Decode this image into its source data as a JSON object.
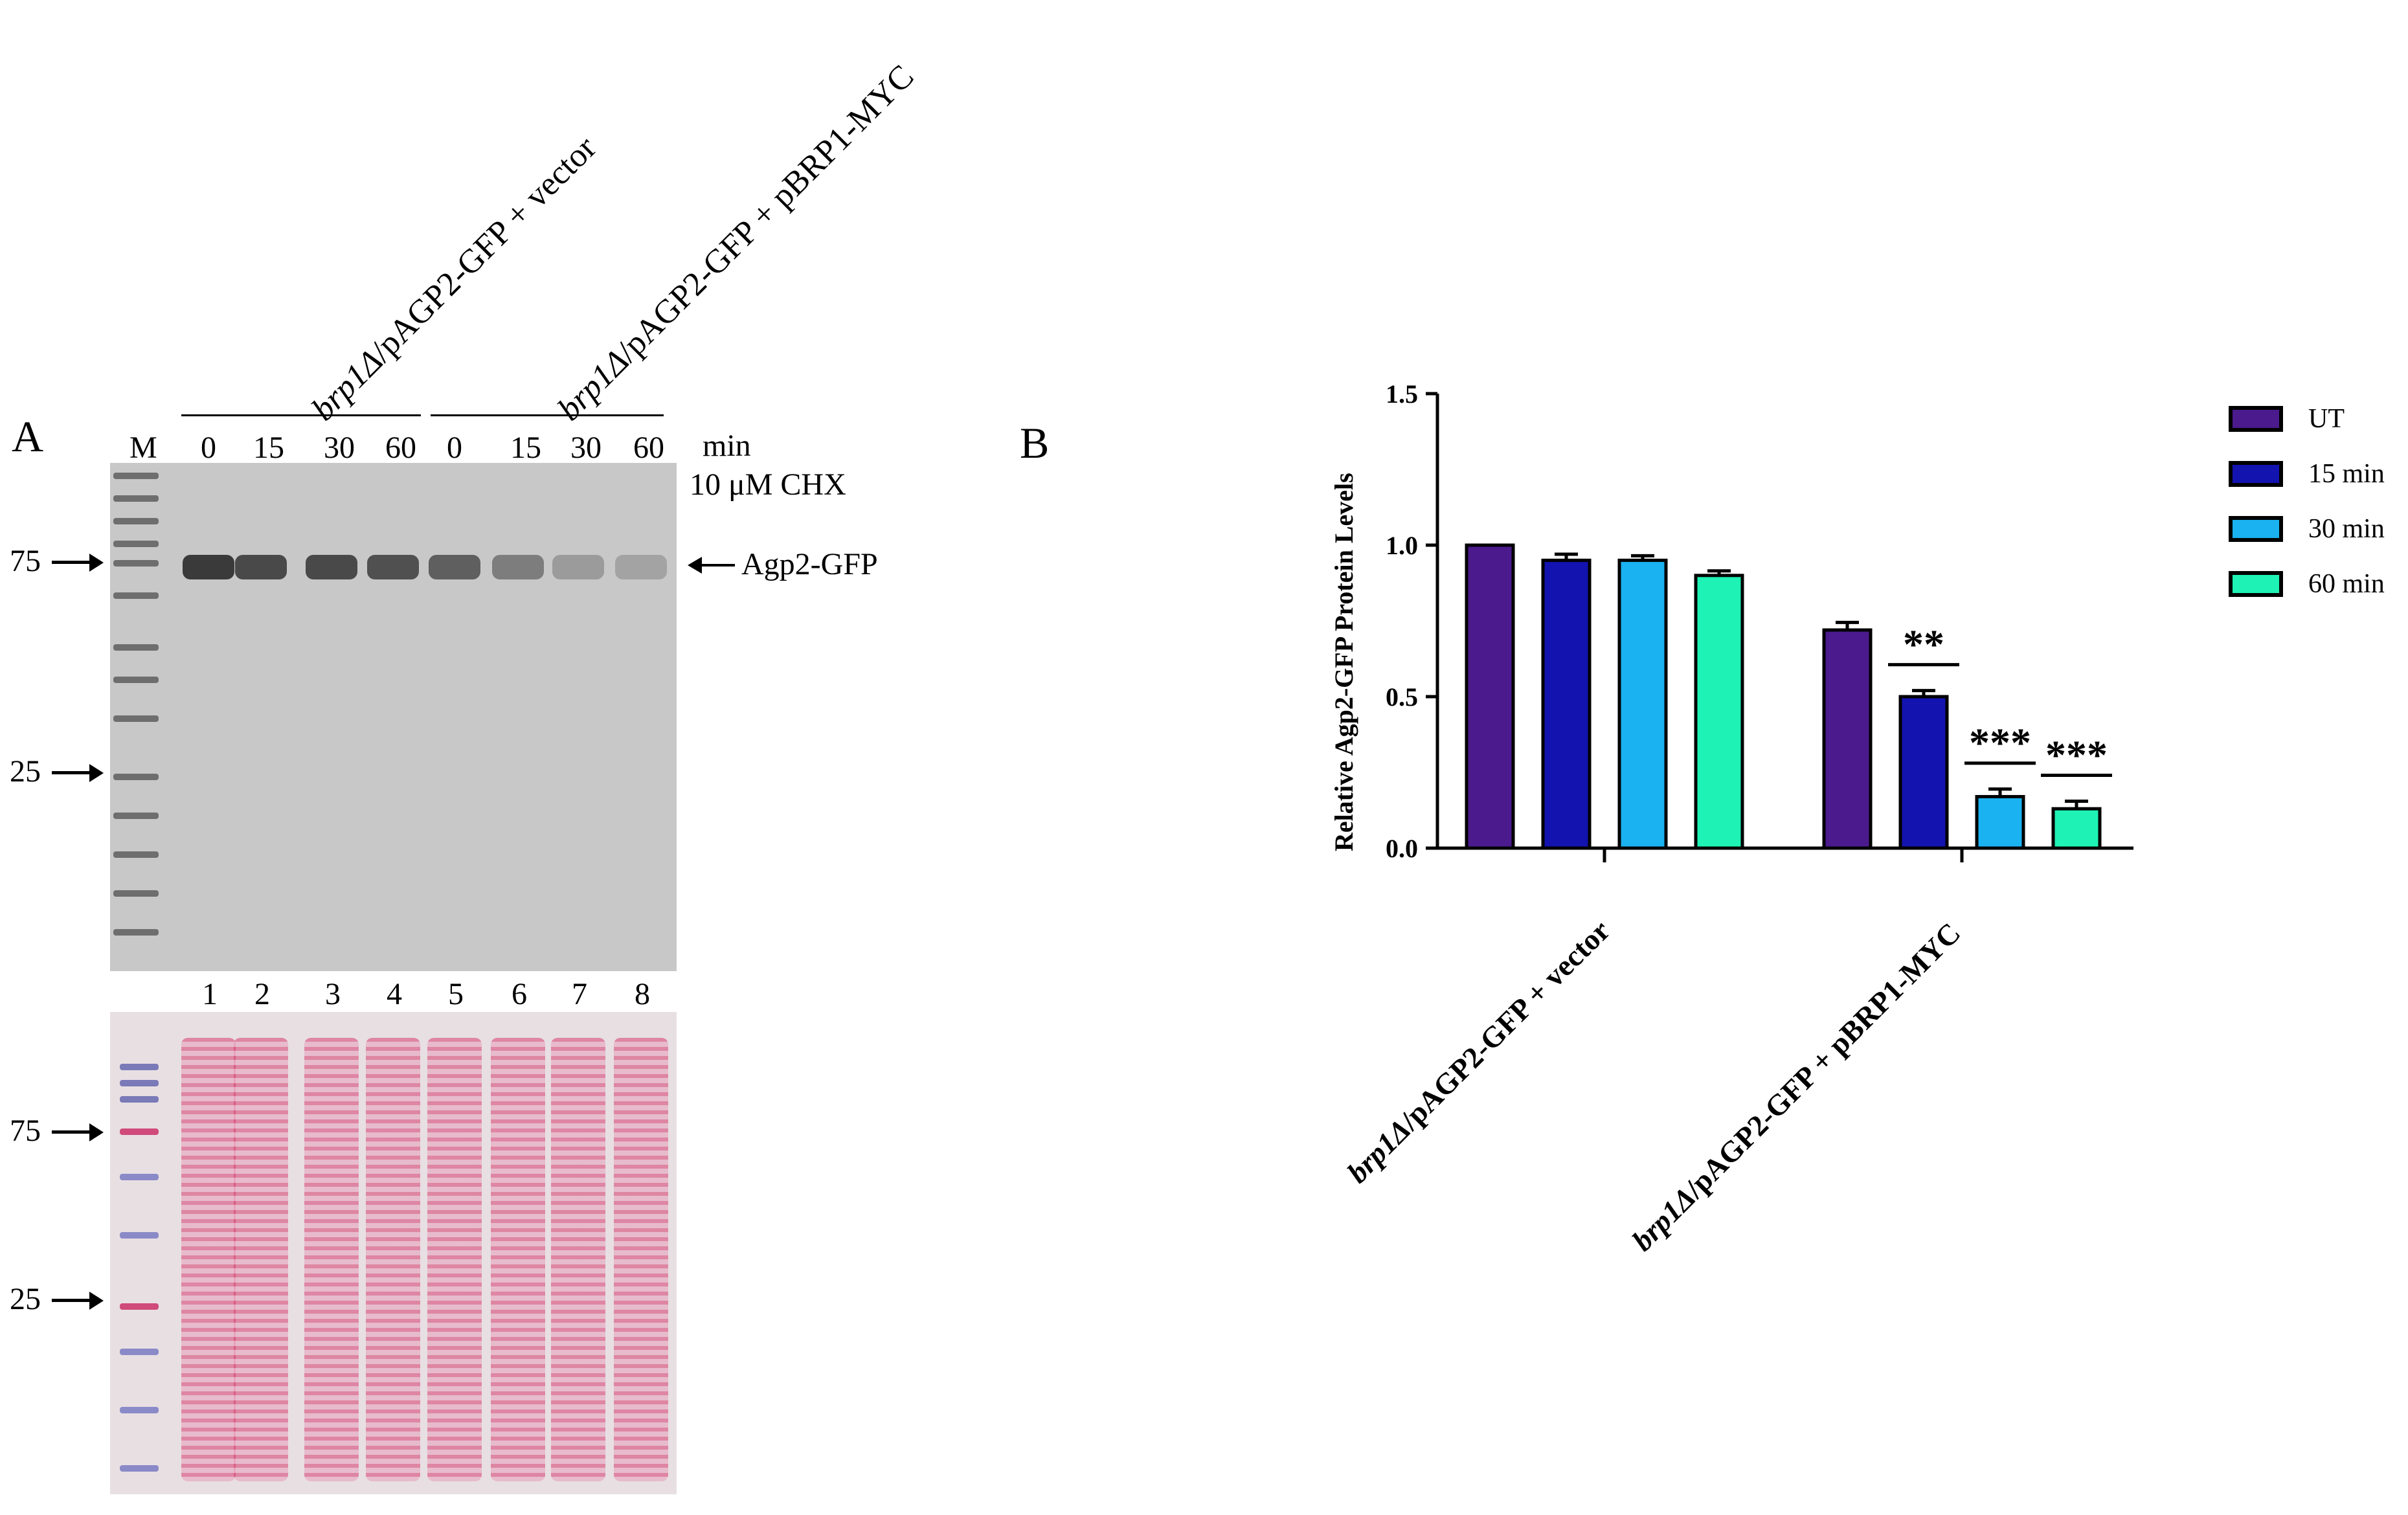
{
  "panel_a": {
    "letter": "A",
    "groups": [
      {
        "italic": "brp1Δ",
        "rest": "/pAGP2-GFP + vector"
      },
      {
        "italic": "brp1Δ",
        "rest": "/pAGP2-GFP + pBRP1-MYC"
      }
    ],
    "marker_label": "M",
    "timepoints": [
      "0",
      "15",
      "30",
      "60",
      "0",
      "15",
      "30",
      "60"
    ],
    "time_unit": "min",
    "treatment": "10 μM CHX",
    "band_label": "Agp2-GFP",
    "mw_markers_top": [
      "75",
      "25"
    ],
    "lane_numbers": [
      "1",
      "2",
      "3",
      "4",
      "5",
      "6",
      "7",
      "8"
    ],
    "mw_markers_bottom": [
      "75",
      "25"
    ],
    "band_intensities": [
      0.95,
      0.85,
      0.85,
      0.8,
      0.7,
      0.5,
      0.3,
      0.25
    ]
  },
  "panel_b": {
    "letter": "B",
    "chart_data": {
      "type": "bar",
      "ylabel": "Relative Agp2-GFP Protein Levels",
      "ylim": [
        0,
        1.5
      ],
      "yticks": [
        "0.0",
        "0.5",
        "1.0",
        "1.5"
      ],
      "categories": [
        {
          "italic": "brp1Δ",
          "rest": "/pAGP2-GFP + vector"
        },
        {
          "italic": "brp1Δ",
          "rest": "/pAGP2-GFP + pBRP1-MYC"
        }
      ],
      "series": [
        {
          "name": "UT",
          "color": "#4b1a8c",
          "values": [
            1.0,
            0.72
          ],
          "errors": [
            0,
            0.025
          ]
        },
        {
          "name": "15 min",
          "color": "#1313b0",
          "values": [
            0.95,
            0.5
          ],
          "errors": [
            0.02,
            0.02
          ]
        },
        {
          "name": "30 min",
          "color": "#1ab2f0",
          "values": [
            0.95,
            0.17
          ],
          "errors": [
            0.015,
            0.025
          ]
        },
        {
          "name": "60 min",
          "color": "#1ef2b4",
          "values": [
            0.9,
            0.13
          ],
          "errors": [
            0.015,
            0.025
          ]
        }
      ],
      "significance": [
        {
          "series": 1,
          "group": 1,
          "label": "**"
        },
        {
          "series": 2,
          "group": 1,
          "label": "***"
        },
        {
          "series": 3,
          "group": 1,
          "label": "***"
        }
      ],
      "legend_position": "right"
    }
  }
}
